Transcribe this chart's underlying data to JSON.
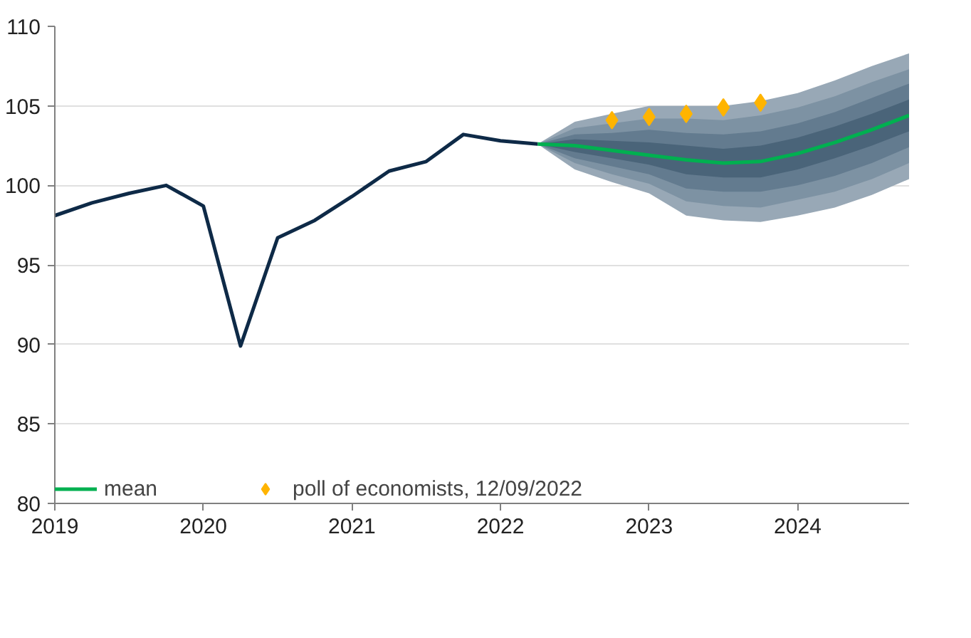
{
  "chart_data": {
    "type": "line",
    "xlim": [
      2019,
      2024.75
    ],
    "ylim": [
      80,
      110
    ],
    "xticks": [
      2019,
      2020,
      2021,
      2022,
      2023,
      2024
    ],
    "yticks": [
      80,
      85,
      90,
      95,
      100,
      105,
      110
    ],
    "grid": "y",
    "legend": "bottom",
    "marker": "none",
    "line_style": "solid",
    "series": [
      {
        "type": "area",
        "color": "#98a8b6",
        "x": [
          2022.25,
          2022.5,
          2022.75,
          2023,
          2023.25,
          2023.5,
          2023.75,
          2024,
          2024.25,
          2024.5,
          2024.75
        ],
        "values": [
          null,
          null,
          null,
          null,
          null,
          null,
          null,
          null,
          null,
          null,
          null
        ],
        "upper": [
          102.6,
          104.0,
          104.5,
          105.0,
          105.0,
          105.0,
          105.3,
          105.8,
          106.6,
          107.5,
          108.3
        ],
        "lower": [
          102.6,
          101.0,
          100.2,
          99.5,
          98.1,
          97.8,
          97.7,
          98.1,
          98.6,
          99.4,
          100.4
        ]
      },
      {
        "type": "area",
        "color": "#7d92a3",
        "x": [
          2022.25,
          2022.5,
          2022.75,
          2023,
          2023.25,
          2023.5,
          2023.75,
          2024,
          2024.25,
          2024.5,
          2024.75
        ],
        "values": [
          null,
          null,
          null,
          null,
          null,
          null,
          null,
          null,
          null,
          null,
          null
        ],
        "upper": [
          102.6,
          103.6,
          103.9,
          104.2,
          104.2,
          104.1,
          104.4,
          104.9,
          105.6,
          106.5,
          107.3
        ],
        "lower": [
          102.6,
          101.4,
          100.7,
          100.1,
          99.0,
          98.7,
          98.6,
          99.1,
          99.6,
          100.4,
          101.4
        ]
      },
      {
        "type": "area",
        "color": "#637b8f",
        "x": [
          2022.25,
          2022.5,
          2022.75,
          2023,
          2023.25,
          2023.5,
          2023.75,
          2024,
          2024.25,
          2024.5,
          2024.75
        ],
        "values": [
          null,
          null,
          null,
          null,
          null,
          null,
          null,
          null,
          null,
          null,
          null
        ],
        "upper": [
          102.6,
          103.2,
          103.3,
          103.5,
          103.3,
          103.2,
          103.4,
          103.9,
          104.6,
          105.5,
          106.4
        ],
        "lower": [
          102.6,
          101.7,
          101.2,
          100.7,
          99.8,
          99.6,
          99.6,
          100.0,
          100.6,
          101.4,
          102.4
        ]
      },
      {
        "type": "area",
        "color": "#4a6479",
        "x": [
          2022.25,
          2022.5,
          2022.75,
          2023,
          2023.25,
          2023.5,
          2023.75,
          2024,
          2024.25,
          2024.5,
          2024.75
        ],
        "values": [
          null,
          null,
          null,
          null,
          null,
          null,
          null,
          null,
          null,
          null,
          null
        ],
        "upper": [
          102.6,
          102.9,
          102.8,
          102.7,
          102.5,
          102.3,
          102.5,
          103.0,
          103.7,
          104.5,
          105.4
        ],
        "lower": [
          102.6,
          102.1,
          101.7,
          101.3,
          100.7,
          100.5,
          100.5,
          101.0,
          101.7,
          102.5,
          103.4
        ]
      },
      {
        "color": "#0e2a47",
        "x": [
          2019,
          2019.25,
          2019.5,
          2019.75,
          2020,
          2020.25,
          2020.5,
          2020.75,
          2021,
          2021.25,
          2021.5,
          2021.75,
          2022,
          2022.25
        ],
        "values": [
          98.1,
          98.9,
          99.5,
          100.0,
          98.7,
          89.9,
          96.7,
          97.8,
          99.3,
          100.9,
          101.5,
          103.2,
          102.8,
          102.6
        ]
      },
      {
        "name": "mean",
        "color": "#00b050",
        "x": [
          2022.25,
          2022.5,
          2022.75,
          2023,
          2023.25,
          2023.5,
          2023.75,
          2024,
          2024.25,
          2024.5,
          2024.75
        ],
        "values": [
          102.6,
          102.5,
          102.2,
          101.9,
          101.6,
          101.4,
          101.5,
          102.0,
          102.7,
          103.5,
          104.4
        ]
      },
      {
        "type": "scatter",
        "name": "poll of economists, 12/09/2022",
        "color": "#ffb400",
        "marker": "diamond",
        "x": [
          2022.75,
          2023,
          2023.25,
          2023.5,
          2023.75
        ],
        "values": [
          104.1,
          104.3,
          104.5,
          104.9,
          105.2
        ]
      }
    ]
  }
}
